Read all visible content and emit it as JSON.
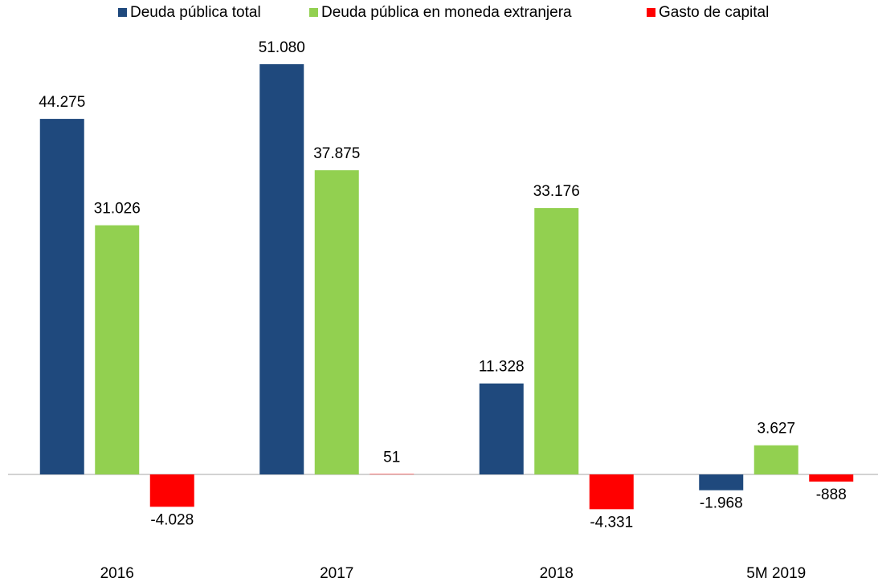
{
  "chart_data": {
    "type": "bar",
    "categories": [
      "2016",
      "2017",
      "2018",
      "5M 2019"
    ],
    "series": [
      {
        "name": "Deuda pública total",
        "color": "#1f497d",
        "values": [
          44275,
          51080,
          11328,
          -1968
        ],
        "value_labels": [
          "44.275",
          "51.080",
          "11.328",
          "-1.968"
        ]
      },
      {
        "name": "Deuda pública en moneda extranjera",
        "color": "#92d050",
        "values": [
          31026,
          37875,
          33176,
          3627
        ],
        "value_labels": [
          "31.026",
          "37.875",
          "33.176",
          "3.627"
        ]
      },
      {
        "name": "Gasto de capital",
        "color": "#ff0000",
        "values": [
          -4028,
          51,
          -4331,
          -888
        ],
        "value_labels": [
          "-4.028",
          "51",
          "-4.331",
          "-888"
        ]
      }
    ],
    "legend": "top"
  }
}
